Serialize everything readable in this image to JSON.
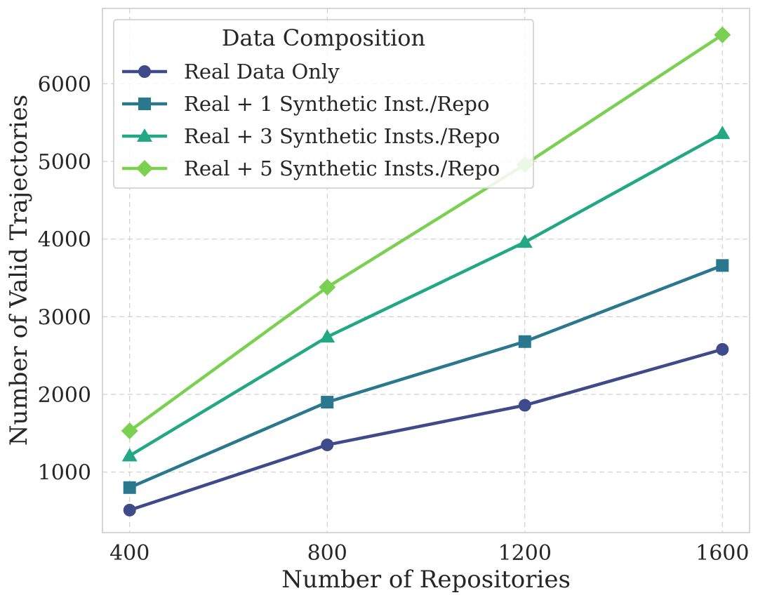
{
  "chart_data": {
    "type": "line",
    "title": "",
    "xlabel": "Number of Repositories",
    "ylabel": "Number of Valid Trajectories",
    "x": [
      400,
      800,
      1200,
      1600
    ],
    "x_tick_labels": [
      "400",
      "800",
      "1200",
      "1600"
    ],
    "xlim": [
      345,
      1655
    ],
    "ylim": [
      220,
      6970
    ],
    "y_ticks": [
      1000,
      2000,
      3000,
      4000,
      5000,
      6000
    ],
    "y_tick_labels": [
      "1000",
      "2000",
      "3000",
      "4000",
      "5000",
      "6000"
    ],
    "grid": true,
    "legend": {
      "title": "Data Composition",
      "placement": "top-left"
    },
    "series": [
      {
        "name": "Real Data Only",
        "values": [
          510,
          1350,
          1860,
          2580
        ],
        "marker": "circle",
        "color": "#3e4a89"
      },
      {
        "name": "Real + 1 Synthetic Inst./Repo",
        "values": [
          800,
          1900,
          2680,
          3660
        ],
        "marker": "square",
        "color": "#2a788e"
      },
      {
        "name": "Real + 3 Synthetic Insts./Repo",
        "values": [
          1210,
          2740,
          3960,
          5360
        ],
        "marker": "triangle",
        "color": "#22a884"
      },
      {
        "name": "Real + 5 Synthetic Insts./Repo",
        "values": [
          1530,
          3380,
          4960,
          6630
        ],
        "marker": "diamond",
        "color": "#7ad151"
      }
    ]
  }
}
